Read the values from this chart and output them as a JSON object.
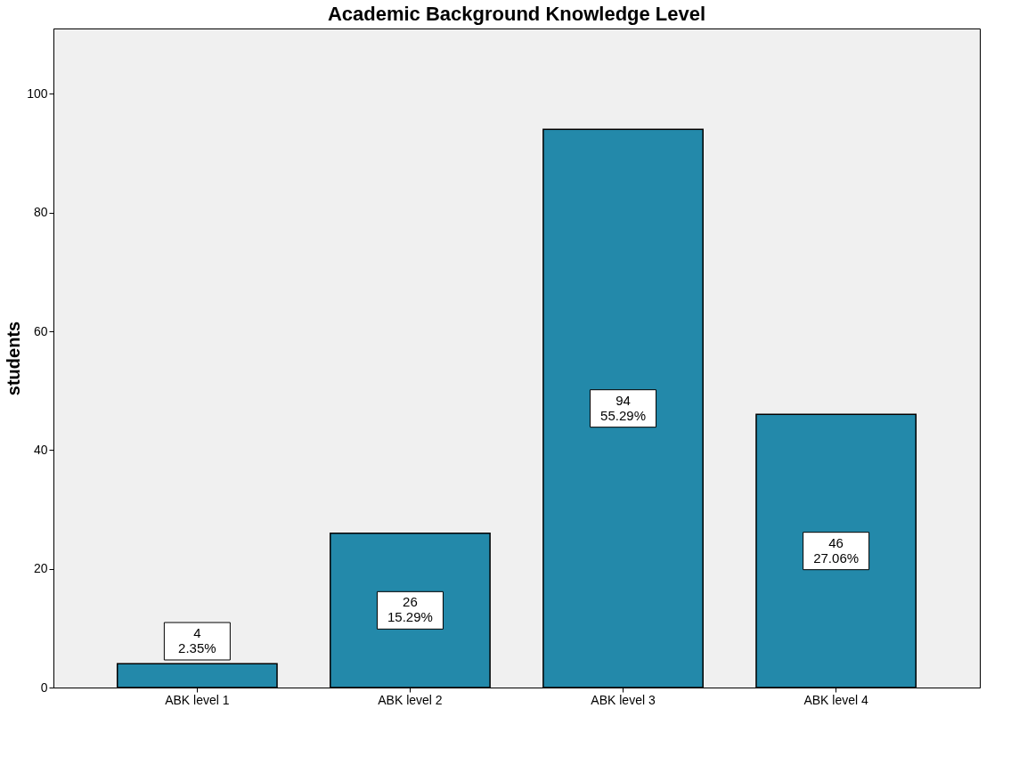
{
  "chart_data": {
    "type": "bar",
    "title": "Academic Background Knowledge Level",
    "ylabel": "students",
    "categories": [
      "ABK level 1",
      "ABK level 2",
      "ABK level 3",
      "ABK level 4"
    ],
    "values": [
      4,
      26,
      94,
      46
    ],
    "color": "#2389aa",
    "value_labels": [
      "4\n2.35%",
      "26\n15.29%",
      "94\n55.29%",
      "46\n27.06%"
    ],
    "ylim": [
      0,
      111
    ],
    "yticks": [
      0,
      20,
      40,
      60,
      80,
      100
    ],
    "grid": false
  }
}
